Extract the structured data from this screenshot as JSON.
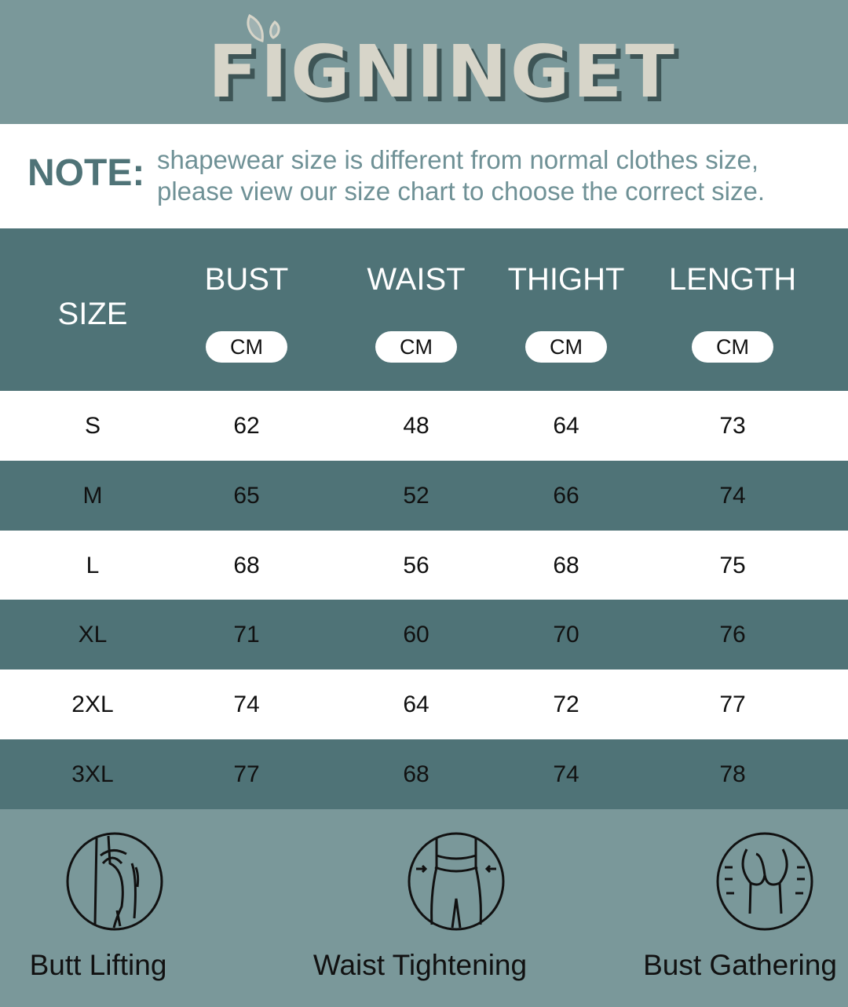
{
  "brand": {
    "logo_text": "FIGNINGET"
  },
  "note": {
    "label": "NOTE:",
    "lines": [
      "shapewear size is different from normal clothes size,",
      "please view our size chart to choose the correct size."
    ]
  },
  "table": {
    "headers": [
      "SIZE",
      "BUST",
      "WAIST",
      "THIGHT",
      "LENGTH"
    ],
    "unit": "CM",
    "rows": [
      [
        "S",
        "62",
        "48",
        "64",
        "73"
      ],
      [
        "M",
        "65",
        "52",
        "66",
        "74"
      ],
      [
        "L",
        "68",
        "56",
        "68",
        "75"
      ],
      [
        "XL",
        "71",
        "60",
        "70",
        "76"
      ],
      [
        "2XL",
        "74",
        "64",
        "72",
        "77"
      ],
      [
        "3XL",
        "77",
        "68",
        "74",
        "78"
      ]
    ]
  },
  "features": [
    {
      "label": "Butt Lifting",
      "icon": "butt-lifting-icon"
    },
    {
      "label": "Waist Tightening",
      "icon": "waist-tightening-icon"
    },
    {
      "label": "Bust Gathering",
      "icon": "bust-gathering-icon"
    }
  ],
  "colors": {
    "header_bg": "#7a989a",
    "table_dark": "#4f7377",
    "white": "#ffffff",
    "logo": "#d7d5c9"
  }
}
